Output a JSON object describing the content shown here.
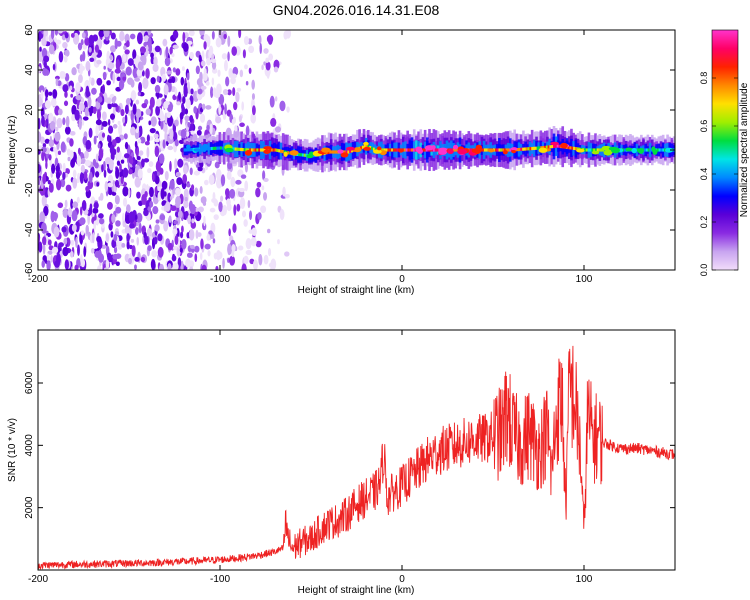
{
  "title": "GN04.2026.016.14.31.E08",
  "chart_data": [
    {
      "type": "heatmap",
      "name": "spectrogram",
      "xlabel": "Height of straight line (km)",
      "ylabel": "Frequency (Hz)",
      "xlim": [
        -200,
        150
      ],
      "ylim": [
        -60,
        60
      ],
      "xticks": [
        -200,
        -100,
        0,
        100
      ],
      "yticks": [
        -60,
        -40,
        -20,
        0,
        20,
        40,
        60
      ],
      "xtick_labels": [
        "-200",
        "-100",
        "0",
        "100"
      ],
      "ytick_labels": [
        "-60",
        "-40",
        "-20",
        "0",
        "20",
        "40",
        "60"
      ],
      "colorbar": {
        "label": "Normalized spectral amplitude",
        "range": [
          0.0,
          1.0
        ],
        "ticks": [
          0.0,
          0.2,
          0.4,
          0.6,
          0.8
        ],
        "tick_labels": [
          "0.0",
          "0.2",
          "0.4",
          "0.6",
          "0.8"
        ],
        "colors": [
          "#f2ddfa",
          "#c8a4f0",
          "#8a2be2",
          "#5a00d8",
          "#0000ff",
          "#0088ff",
          "#00e5e5",
          "#00dd40",
          "#a0ee00",
          "#ffe000",
          "#ff8800",
          "#ff2200",
          "#ff0066",
          "#ff33cc"
        ]
      },
      "noise_region_km": [
        -200,
        -62
      ],
      "noise_density_fade_km": [
        -120,
        -62
      ],
      "signal_band": [
        {
          "x": -120,
          "freq_hz": 0,
          "amplitude": 0.3
        },
        {
          "x": -100,
          "freq_hz": 1,
          "amplitude": 0.45
        },
        {
          "x": -85,
          "freq_hz": 0,
          "amplitude": 0.7
        },
        {
          "x": -70,
          "freq_hz": 0,
          "amplitude": 0.75
        },
        {
          "x": -60,
          "freq_hz": -2,
          "amplitude": 0.55
        },
        {
          "x": -50,
          "freq_hz": -3,
          "amplitude": 0.45
        },
        {
          "x": -40,
          "freq_hz": -1,
          "amplitude": 0.85
        },
        {
          "x": -30,
          "freq_hz": -1,
          "amplitude": 0.8
        },
        {
          "x": -20,
          "freq_hz": 2,
          "amplitude": 0.7
        },
        {
          "x": -15,
          "freq_hz": 0,
          "amplitude": 0.6
        },
        {
          "x": -5,
          "freq_hz": 0,
          "amplitude": 0.8
        },
        {
          "x": 10,
          "freq_hz": 0,
          "amplitude": 0.95
        },
        {
          "x": 30,
          "freq_hz": 0,
          "amplitude": 0.85
        },
        {
          "x": 50,
          "freq_hz": 0,
          "amplitude": 0.75
        },
        {
          "x": 60,
          "freq_hz": 0,
          "amplitude": 0.85
        },
        {
          "x": 75,
          "freq_hz": 1,
          "amplitude": 0.65
        },
        {
          "x": 85,
          "freq_hz": 2,
          "amplitude": 0.9
        },
        {
          "x": 100,
          "freq_hz": 0,
          "amplitude": 0.6
        },
        {
          "x": 120,
          "freq_hz": 0,
          "amplitude": 0.45
        },
        {
          "x": 150,
          "freq_hz": 0,
          "amplitude": 0.4
        }
      ]
    },
    {
      "type": "line",
      "name": "snr",
      "xlabel": "Height of straight line (km)",
      "ylabel": "SNR (10 * v/v)",
      "xlim": [
        -200,
        150
      ],
      "ylim": [
        0,
        7700
      ],
      "xticks": [
        -200,
        -100,
        0,
        100
      ],
      "yticks": [
        2000,
        4000,
        6000
      ],
      "xtick_labels": [
        "-200",
        "-100",
        "0",
        "100"
      ],
      "ytick_labels": [
        "2000",
        "4000",
        "6000"
      ],
      "color": "#ee2222",
      "series": [
        {
          "name": "SNR",
          "x": [
            -200,
            -180,
            -160,
            -140,
            -120,
            -100,
            -90,
            -80,
            -70,
            -65,
            -64,
            -62,
            -60,
            -55,
            -50,
            -45,
            -40,
            -35,
            -30,
            -25,
            -20,
            -15,
            -12,
            -10,
            -8,
            -5,
            0,
            5,
            10,
            15,
            20,
            25,
            30,
            35,
            40,
            45,
            50,
            55,
            58,
            60,
            65,
            70,
            75,
            80,
            82,
            85,
            88,
            90,
            92,
            95,
            98,
            100,
            102,
            105,
            108,
            110,
            115,
            120,
            130,
            140,
            150
          ],
          "y": [
            150,
            180,
            200,
            230,
            270,
            330,
            380,
            460,
            580,
            700,
            1500,
            900,
            700,
            900,
            1000,
            1300,
            1500,
            1600,
            1800,
            2100,
            2300,
            2500,
            2800,
            3800,
            2300,
            2500,
            2700,
            3000,
            3300,
            3600,
            3800,
            3900,
            4000,
            4100,
            4200,
            4200,
            4300,
            4400,
            5200,
            4500,
            4000,
            4400,
            3800,
            4500,
            3000,
            5000,
            5500,
            2000,
            6000,
            5400,
            3800,
            1200,
            5000,
            4200,
            4300,
            4100,
            4000,
            3900,
            3900,
            3800,
            3700
          ]
        }
      ]
    }
  ]
}
